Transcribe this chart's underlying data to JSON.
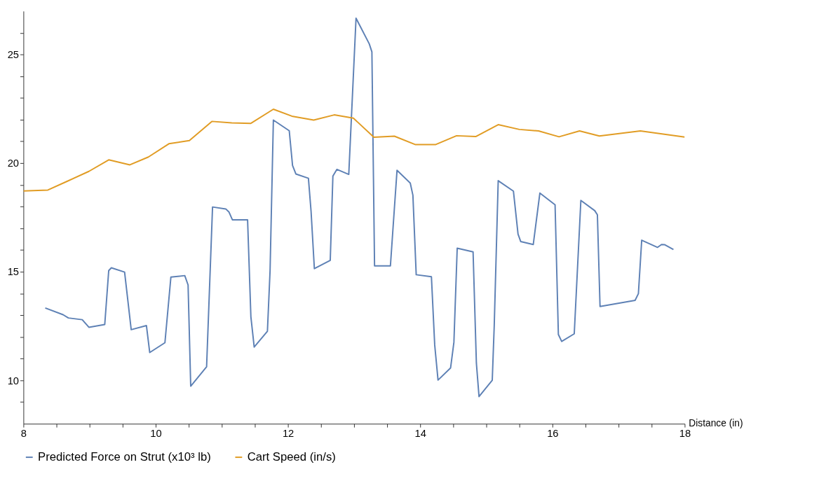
{
  "chart_data": {
    "type": "line",
    "xlabel": "Distance (in)",
    "xlim": [
      8,
      18
    ],
    "ylim": [
      8,
      27
    ],
    "xticks": [
      8,
      {
        "value": 8.5,
        "label": null
      },
      {
        "value": 9,
        "label": null
      },
      {
        "value": 9.5,
        "label": null
      },
      10,
      {
        "value": 10.5,
        "label": null
      },
      {
        "value": 11,
        "label": null
      },
      {
        "value": 11.5,
        "label": null
      },
      12,
      {
        "value": 12.5,
        "label": null
      },
      {
        "value": 13,
        "label": null
      },
      {
        "value": 13.5,
        "label": null
      },
      14,
      {
        "value": 14.5,
        "label": null
      },
      {
        "value": 15,
        "label": null
      },
      {
        "value": 15.5,
        "label": null
      },
      16,
      {
        "value": 16.5,
        "label": null
      },
      {
        "value": 17,
        "label": null
      },
      {
        "value": 17.5,
        "label": null
      },
      18
    ],
    "yticks": [
      {
        "value": 9,
        "label": null
      },
      10,
      {
        "value": 11,
        "label": null
      },
      {
        "value": 12,
        "label": null
      },
      {
        "value": 13,
        "label": null
      },
      {
        "value": 14,
        "label": null
      },
      15,
      {
        "value": 16,
        "label": null
      },
      {
        "value": 17,
        "label": null
      },
      {
        "value": 18,
        "label": null
      },
      {
        "value": 19,
        "label": null
      },
      20,
      {
        "value": 21,
        "label": null
      },
      {
        "value": 22,
        "label": null
      },
      {
        "value": 23,
        "label": null
      },
      {
        "value": 24,
        "label": null
      },
      25,
      {
        "value": 26,
        "label": null
      }
    ],
    "grid": false,
    "legend": "bottom",
    "marker": "none",
    "line_style": "solid",
    "series": [
      {
        "name": "Predicted Force on Strut (x10³ lb)",
        "color": "#5e81b5",
        "x": [
          8.33,
          8.6,
          8.68,
          8.89,
          8.99,
          9.23,
          9.29,
          9.33,
          9.53,
          9.63,
          9.86,
          9.91,
          10.14,
          10.23,
          10.44,
          10.49,
          10.53,
          10.77,
          10.86,
          11.06,
          11.11,
          11.16,
          11.39,
          11.44,
          11.49,
          11.69,
          11.73,
          11.78,
          12.02,
          12.07,
          12.12,
          12.31,
          12.35,
          12.4,
          12.64,
          12.68,
          12.74,
          12.92,
          13.03,
          13.23,
          13.27,
          13.31,
          13.55,
          13.61,
          13.65,
          13.85,
          13.89,
          13.94,
          14.17,
          14.22,
          14.27,
          14.46,
          14.51,
          14.56,
          14.8,
          14.85,
          14.89,
          15.09,
          15.12,
          15.18,
          15.41,
          15.48,
          15.52,
          15.71,
          15.81,
          16.04,
          16.09,
          16.14,
          16.33,
          16.43,
          16.64,
          16.68,
          16.72,
          17.25,
          17.3,
          17.35,
          17.59,
          17.65,
          17.7,
          17.83
        ],
        "values": [
          13.33,
          13.02,
          12.87,
          12.79,
          12.44,
          12.57,
          15.05,
          15.18,
          14.98,
          12.33,
          12.52,
          11.28,
          11.73,
          14.75,
          14.82,
          14.39,
          9.73,
          10.62,
          17.98,
          17.89,
          17.74,
          17.39,
          17.39,
          12.92,
          11.53,
          12.26,
          15.04,
          21.98,
          21.49,
          19.89,
          19.5,
          19.3,
          17.78,
          15.14,
          15.52,
          19.4,
          19.71,
          19.48,
          26.67,
          25.49,
          25.12,
          15.27,
          15.27,
          17.92,
          19.67,
          19.08,
          18.52,
          14.86,
          14.77,
          11.62,
          10.01,
          10.57,
          11.75,
          16.08,
          15.91,
          10.79,
          9.25,
          10.0,
          12.52,
          19.19,
          18.71,
          16.73,
          16.39,
          16.25,
          18.62,
          18.08,
          12.11,
          11.79,
          12.14,
          18.28,
          17.81,
          17.62,
          13.4,
          13.68,
          13.99,
          16.45,
          16.12,
          16.25,
          16.24,
          16.02
        ]
      },
      {
        "name": "Cart Speed (in/s)",
        "color": "#e19c24",
        "x": [
          8,
          8.37,
          8.66,
          8.99,
          9.29,
          9.61,
          9.89,
          10.2,
          10.51,
          10.85,
          11.15,
          11.44,
          11.78,
          12.06,
          12.39,
          12.7,
          12.99,
          13.3,
          13.61,
          13.93,
          14.23,
          14.55,
          14.84,
          15.18,
          15.5,
          15.79,
          16.1,
          16.41,
          16.71,
          17.33,
          18.0
        ],
        "values": [
          18.72,
          18.76,
          19.16,
          19.62,
          20.15,
          19.92,
          20.28,
          20.89,
          21.04,
          21.92,
          21.85,
          21.83,
          22.48,
          22.16,
          21.98,
          22.22,
          22.07,
          21.19,
          21.24,
          20.85,
          20.85,
          21.26,
          21.22,
          21.77,
          21.55,
          21.48,
          21.21,
          21.48,
          21.25,
          21.48,
          21.2
        ]
      }
    ]
  }
}
